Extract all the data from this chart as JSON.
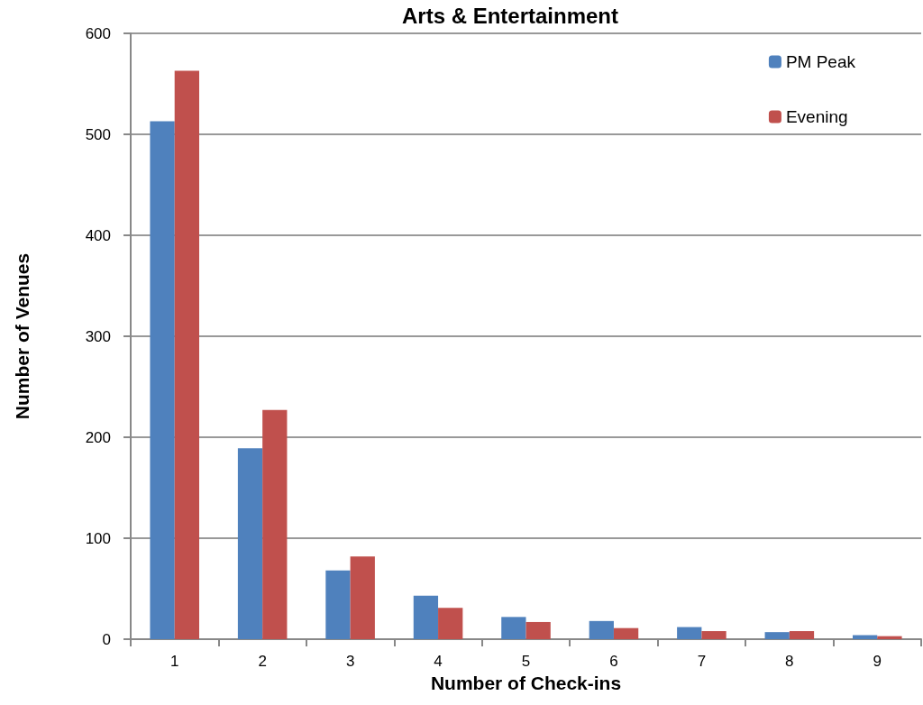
{
  "chart_data": {
    "type": "bar",
    "title": "Arts & Entertainment",
    "xlabel": "Number of Check-ins",
    "ylabel": "Number of Venues",
    "categories": [
      "1",
      "2",
      "3",
      "4",
      "5",
      "6",
      "7",
      "8",
      "9"
    ],
    "series": [
      {
        "name": "PM Peak",
        "color": "#4f81bd",
        "values": [
          513,
          189,
          68,
          43,
          22,
          18,
          12,
          7,
          4
        ]
      },
      {
        "name": "Evening",
        "color": "#c0504d",
        "values": [
          563,
          227,
          82,
          31,
          17,
          11,
          8,
          8,
          3
        ]
      }
    ],
    "ylim": [
      0,
      600
    ],
    "yticks": [
      0,
      100,
      200,
      300,
      400,
      500,
      600
    ],
    "grid": "y",
    "legend": "top right"
  }
}
